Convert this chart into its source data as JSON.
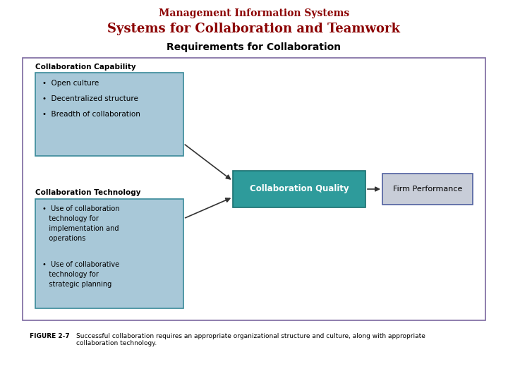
{
  "title1": "Management Information Systems",
  "title2": "Systems for Collaboration and Teamwork",
  "title3": "Requirements for Collaboration",
  "title1_color": "#8B0000",
  "title2_color": "#8B0000",
  "title3_color": "#000000",
  "title1_fontsize": 10,
  "title2_fontsize": 13,
  "title3_fontsize": 10,
  "figure_caption_label": "FIGURE 2-7",
  "figure_caption_text": "Successful collaboration requires an appropriate organizational structure and culture, along with appropriate\ncollaboration technology.",
  "outer_box_color": "#7B68A0",
  "outer_box_facecolor": "#FFFFFF",
  "cap_box1_label": "Collaboration Capability",
  "cap_box1_bullet1": "•  Open culture",
  "cap_box1_bullet2": "•  Decentralized structure",
  "cap_box1_bullet3": "•  Breadth of collaboration",
  "cap_box2_label": "Collaboration Technology",
  "cap_box2_bullet1": "•  Use of collaboration\n   technology for\n   implementation and\n   operations",
  "cap_box2_bullet2": "•  Use of collaborative\n   technology for\n   strategic planning",
  "collab_quality_label": "Collaboration Quality",
  "firm_perf_label": "Firm Performance",
  "left_box_facecolor": "#A8C8D8",
  "left_box_edgecolor": "#3A8A9A",
  "collab_quality_facecolor": "#2E9B9B",
  "collab_quality_edgecolor": "#1A7070",
  "firm_perf_facecolor": "#C8CDD8",
  "firm_perf_edgecolor": "#5060A0",
  "background_color": "#FFFFFF",
  "arrow_color": "#333333",
  "cap_label_color": "#000000",
  "bullet_color": "#000000",
  "cq_text_color": "#FFFFFF",
  "fp_text_color": "#000000"
}
